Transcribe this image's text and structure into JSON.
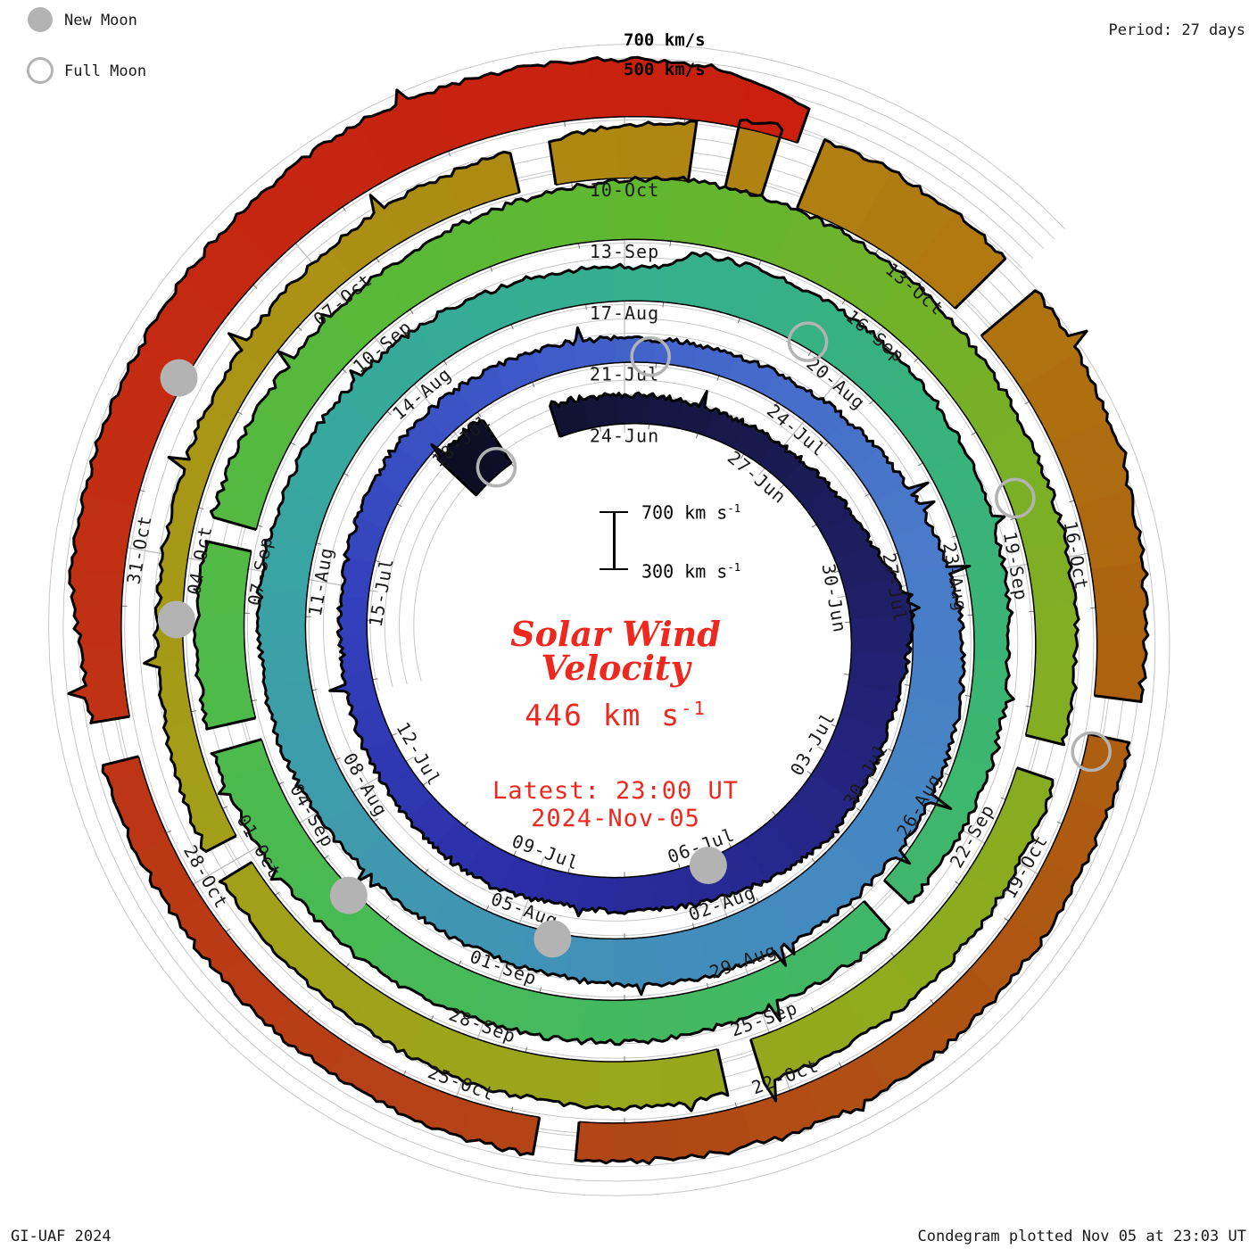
{
  "header": {
    "period_label": "Period: 27 days"
  },
  "legend": {
    "new_moon_label": "New Moon",
    "full_moon_label": "Full Moon",
    "marker_color": "#b3b3b3"
  },
  "radial_axis": {
    "label_700": "700 km/s",
    "label_500": "500 km/s"
  },
  "scale_bar": {
    "top_label": "700 km s",
    "bottom_label": "300 km s",
    "exponent": "-1"
  },
  "center_text": {
    "title_line1": "Solar Wind",
    "title_line2": "Velocity",
    "value": "446 km s",
    "value_exponent": "-1",
    "latest_line1": "Latest: 23:00 UT",
    "latest_line2": "2024-Nov-05",
    "text_color": "#ee281e"
  },
  "footer": {
    "left": "GI-UAF 2024",
    "right": "Condegram plotted Nov 05 at 23:03 UT"
  },
  "chart_data": {
    "type": "area",
    "subtype": "polar-spiral-condegram",
    "title": "Solar Wind Velocity",
    "units": "km/s",
    "period_days": 27,
    "label_step_days": 3,
    "baseline_kms": 200,
    "gridlines_kms": [
      300,
      400,
      500,
      600,
      700
    ],
    "labeled_gridlines_kms": [
      500,
      700
    ],
    "scale_reference_kms": [
      300,
      700
    ],
    "latest_kms": 446,
    "latest_time": "2024-Nov-05 23:00 UT",
    "start_date": "2024-06-20",
    "end_day": 139.96,
    "first_label_day": 3.5,
    "date_labels": [
      "24-Jun",
      "27-Jun",
      "30-Jun",
      "03-Jul",
      "06-Jul",
      "09-Jul",
      "12-Jul",
      "15-Jul",
      "18-Jul",
      "21-Jul",
      "24-Jul",
      "27-Jul",
      "30-Jul",
      "02-Aug",
      "05-Aug",
      "08-Aug",
      "11-Aug",
      "14-Aug",
      "17-Aug",
      "20-Aug",
      "23-Aug",
      "26-Aug",
      "29-Aug",
      "01-Sep",
      "04-Sep",
      "07-Sep",
      "10-Sep",
      "13-Sep",
      "16-Sep",
      "19-Sep",
      "22-Sep",
      "25-Sep",
      "28-Sep",
      "01-Oct",
      "04-Oct",
      "07-Oct",
      "10-Oct",
      "13-Oct",
      "16-Oct",
      "19-Oct",
      "22-Oct",
      "25-Oct",
      "28-Oct",
      "31-Oct"
    ],
    "velocity_controls": [
      [
        0,
        560
      ],
      [
        0.9,
        575
      ],
      [
        2.3,
        420
      ],
      [
        3.5,
        400
      ],
      [
        5,
        385
      ],
      [
        6.5,
        395
      ],
      [
        8,
        440
      ],
      [
        9,
        500
      ],
      [
        9.8,
        630
      ],
      [
        10.6,
        585
      ],
      [
        11.5,
        545
      ],
      [
        12.5,
        555
      ],
      [
        13.5,
        570
      ],
      [
        14.5,
        530
      ],
      [
        15.5,
        480
      ],
      [
        16.5,
        440
      ],
      [
        18,
        420
      ],
      [
        19,
        455
      ],
      [
        20.5,
        435
      ],
      [
        22,
        405
      ],
      [
        23.5,
        385
      ],
      [
        25,
        395
      ],
      [
        26.5,
        425
      ],
      [
        28,
        415
      ],
      [
        29.5,
        385
      ],
      [
        31,
        360
      ],
      [
        32.5,
        372
      ],
      [
        34,
        400
      ],
      [
        35.5,
        465
      ],
      [
        37,
        535
      ],
      [
        38.5,
        565
      ],
      [
        40,
        575
      ],
      [
        41.5,
        555
      ],
      [
        43,
        548
      ],
      [
        44.5,
        498
      ],
      [
        46,
        468
      ],
      [
        47.5,
        462
      ],
      [
        49,
        508
      ],
      [
        50.5,
        522
      ],
      [
        52,
        522
      ],
      [
        53.5,
        512
      ],
      [
        55,
        492
      ],
      [
        56.5,
        452
      ],
      [
        57.9,
        430
      ],
      [
        58.3,
        560
      ],
      [
        60,
        548
      ],
      [
        61.5,
        512
      ],
      [
        63,
        465
      ],
      [
        64.5,
        442
      ],
      [
        66,
        448
      ],
      [
        67.4,
        430
      ],
      [
        67.9,
        485
      ],
      [
        69,
        455
      ],
      [
        70.5,
        482
      ],
      [
        72,
        492
      ],
      [
        73.5,
        508
      ],
      [
        75,
        522
      ],
      [
        76.5,
        540
      ],
      [
        78,
        530
      ],
      [
        79.5,
        512
      ],
      [
        81,
        505
      ],
      [
        82.5,
        532
      ],
      [
        84,
        585
      ],
      [
        85,
        635
      ],
      [
        86,
        618
      ],
      [
        87.5,
        562
      ],
      [
        89,
        505
      ],
      [
        90.5,
        482
      ],
      [
        92,
        472
      ],
      [
        93.5,
        478
      ],
      [
        95,
        502
      ],
      [
        96.5,
        515
      ],
      [
        98,
        518
      ],
      [
        99.5,
        498
      ],
      [
        101,
        458
      ],
      [
        102.5,
        440
      ],
      [
        104,
        390
      ],
      [
        105.5,
        368
      ],
      [
        107,
        395
      ],
      [
        108.5,
        442
      ],
      [
        110,
        475
      ],
      [
        111,
        520
      ],
      [
        112,
        600
      ],
      [
        112.6,
        690
      ],
      [
        113.5,
        705
      ],
      [
        114.5,
        695
      ],
      [
        115.5,
        685
      ],
      [
        117,
        590
      ],
      [
        118.5,
        525
      ],
      [
        120,
        455
      ],
      [
        121.5,
        468
      ],
      [
        123,
        492
      ],
      [
        124.5,
        472
      ],
      [
        126,
        455
      ],
      [
        127.5,
        432
      ],
      [
        129,
        420
      ],
      [
        130.5,
        445
      ],
      [
        131.6,
        475
      ],
      [
        132.2,
        560
      ],
      [
        133.5,
        572
      ],
      [
        135,
        605
      ],
      [
        136.5,
        635
      ],
      [
        138,
        605
      ],
      [
        139.2,
        575
      ],
      [
        139.96,
        446
      ]
    ],
    "data_gaps": [
      [
        1.05,
        2.15
      ],
      [
        67.5,
        67.8
      ],
      [
        76.55,
        76.75
      ],
      [
        78.7,
        78.9
      ],
      [
        92.3,
        92.6
      ],
      [
        96.7,
        97.0
      ],
      [
        102.4,
        102.65
      ],
      [
        110.5,
        110.8
      ],
      [
        112.1,
        112.4
      ],
      [
        112.8,
        113.1
      ],
      [
        114.9,
        115.2
      ],
      [
        118.8,
        119.1
      ],
      [
        125.4,
        125.7
      ],
      [
        130.7,
        131.0
      ]
    ],
    "color_stops": [
      [
        0,
        "#0c0c22"
      ],
      [
        4,
        "#161640"
      ],
      [
        9,
        "#1e1e63"
      ],
      [
        14,
        "#26268a"
      ],
      [
        19,
        "#2b2fa8"
      ],
      [
        24,
        "#3340bb"
      ],
      [
        28,
        "#3c55c6"
      ],
      [
        32,
        "#4468cb"
      ],
      [
        36,
        "#4a7ac9"
      ],
      [
        40,
        "#4587c2"
      ],
      [
        44,
        "#418fb9"
      ],
      [
        48,
        "#3f9aae"
      ],
      [
        52,
        "#38a5a2"
      ],
      [
        56,
        "#35ad93"
      ],
      [
        60,
        "#36b184"
      ],
      [
        64,
        "#3ab475"
      ],
      [
        68,
        "#40b768"
      ],
      [
        72,
        "#44b95c"
      ],
      [
        76,
        "#4bba4e"
      ],
      [
        80,
        "#55b93e"
      ],
      [
        84,
        "#5eb832"
      ],
      [
        88,
        "#74b128"
      ],
      [
        92,
        "#84ad22"
      ],
      [
        96,
        "#93a91d"
      ],
      [
        100,
        "#9da41a"
      ],
      [
        104,
        "#a49c17"
      ],
      [
        108,
        "#aa9214"
      ],
      [
        112,
        "#b08512"
      ],
      [
        115,
        "#b0760f"
      ],
      [
        118,
        "#ad6410"
      ],
      [
        121,
        "#ae5712"
      ],
      [
        124,
        "#b14a15"
      ],
      [
        127,
        "#b64117"
      ],
      [
        130,
        "#bc3715"
      ],
      [
        133,
        "#c22d12"
      ],
      [
        136,
        "#c62511"
      ],
      [
        140,
        "#ca1f0e"
      ]
    ],
    "moons": {
      "new": [
        {
          "date": "05-Jul",
          "t": 15.5
        },
        {
          "date": "04-Aug",
          "t": 45.0
        },
        {
          "date": "03-Sep",
          "t": 74.5
        },
        {
          "date": "02-Oct",
          "t": 104.9
        },
        {
          "date": "01-Nov",
          "t": 134.0
        }
      ],
      "full": [
        {
          "date": "21-Jun",
          "t": 0.7
        },
        {
          "date": "21-Jul",
          "t": 30.9
        },
        {
          "date": "19-Aug",
          "t": 59.9
        },
        {
          "date": "18-Sep",
          "t": 89.8
        },
        {
          "date": "17-Oct",
          "t": 119.3
        }
      ]
    }
  }
}
